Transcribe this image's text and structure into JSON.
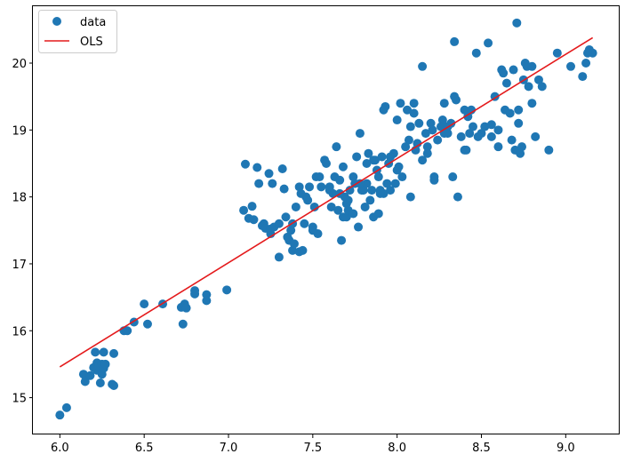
{
  "chart_data": {
    "type": "scatter",
    "title": "",
    "xlabel": "",
    "ylabel": "",
    "xlim": [
      5.84,
      9.32
    ],
    "ylim": [
      14.45,
      20.85
    ],
    "xticks": [
      6.0,
      6.5,
      7.0,
      7.5,
      8.0,
      8.5,
      9.0
    ],
    "xtick_labels": [
      "6.0",
      "6.5",
      "7.0",
      "7.5",
      "8.0",
      "8.5",
      "9.0"
    ],
    "yticks": [
      15,
      16,
      17,
      18,
      19,
      20
    ],
    "ytick_labels": [
      "15",
      "16",
      "17",
      "18",
      "19",
      "20"
    ],
    "grid": false,
    "legend_position": "top-left",
    "colors": {
      "data": "#1f77b4",
      "ols": "#e41a1c"
    },
    "series": [
      {
        "name": "data",
        "kind": "scatter",
        "x": [
          6.0,
          6.04,
          6.14,
          6.15,
          6.18,
          6.2,
          6.21,
          6.22,
          6.22,
          6.23,
          6.24,
          6.25,
          6.25,
          6.26,
          6.26,
          6.27,
          6.31,
          6.32,
          6.32,
          6.38,
          6.4,
          6.44,
          6.5,
          6.52,
          6.61,
          6.72,
          6.73,
          6.74,
          6.75,
          6.8,
          6.8,
          6.87,
          6.87,
          6.99,
          7.09,
          7.1,
          7.12,
          7.14,
          7.15,
          7.17,
          7.18,
          7.2,
          7.21,
          7.22,
          7.24,
          7.25,
          7.26,
          7.27,
          7.3,
          7.32,
          7.33,
          7.34,
          7.36,
          7.37,
          7.38,
          7.38,
          7.39,
          7.4,
          7.42,
          7.44,
          7.45,
          7.46,
          7.47,
          7.48,
          7.5,
          7.51,
          7.52,
          7.53,
          7.55,
          7.57,
          7.58,
          7.6,
          7.61,
          7.62,
          7.63,
          7.65,
          7.66,
          7.67,
          7.68,
          7.68,
          7.69,
          7.7,
          7.71,
          7.72,
          7.74,
          7.75,
          7.76,
          7.77,
          7.78,
          7.79,
          7.8,
          7.81,
          7.82,
          7.83,
          7.84,
          7.85,
          7.86,
          7.87,
          7.88,
          7.89,
          7.9,
          7.91,
          7.92,
          7.93,
          7.94,
          7.95,
          7.96,
          7.98,
          7.99,
          8.0,
          8.01,
          8.02,
          8.03,
          8.05,
          8.06,
          8.07,
          8.08,
          8.1,
          8.11,
          8.12,
          8.13,
          8.15,
          8.17,
          8.18,
          8.2,
          8.21,
          8.22,
          8.24,
          8.26,
          8.27,
          8.28,
          8.3,
          8.32,
          8.33,
          8.34,
          8.35,
          8.36,
          8.38,
          8.4,
          8.41,
          8.42,
          8.43,
          8.45,
          8.47,
          8.5,
          8.52,
          8.54,
          8.56,
          8.58,
          8.6,
          8.62,
          8.64,
          8.65,
          8.67,
          8.68,
          8.69,
          8.7,
          8.71,
          8.72,
          8.74,
          8.75,
          8.76,
          8.77,
          8.78,
          8.8,
          8.82,
          8.84,
          8.86,
          8.95,
          9.03,
          9.1,
          9.12,
          9.14,
          9.16,
          9.13,
          8.9,
          8.6,
          8.4,
          8.3,
          8.1,
          7.9,
          7.7,
          7.5,
          7.3,
          7.86,
          7.92,
          8.18,
          8.34,
          8.44,
          8.56,
          8.63,
          8.73,
          8.8,
          7.54,
          7.43,
          7.64,
          7.96,
          8.22,
          8.28,
          7.82,
          7.66,
          7.78,
          8.0,
          8.15,
          7.71,
          7.6,
          7.35,
          7.25,
          7.42,
          8.48,
          8.72,
          8.08,
          7.89,
          7.74
        ],
        "y": [
          14.74,
          14.85,
          15.35,
          15.24,
          15.33,
          15.45,
          15.68,
          15.52,
          15.41,
          15.47,
          15.22,
          15.35,
          15.5,
          15.68,
          15.44,
          15.5,
          15.2,
          15.18,
          15.66,
          16.0,
          16.0,
          16.13,
          16.4,
          16.1,
          16.4,
          16.35,
          16.1,
          16.4,
          16.34,
          16.55,
          16.6,
          16.45,
          16.54,
          16.61,
          17.8,
          18.49,
          17.68,
          17.86,
          17.66,
          18.44,
          18.2,
          17.57,
          17.6,
          17.53,
          18.35,
          17.45,
          18.2,
          17.55,
          17.6,
          18.42,
          18.12,
          17.7,
          17.35,
          17.5,
          17.6,
          17.2,
          17.3,
          17.85,
          18.15,
          17.2,
          17.6,
          18.0,
          17.95,
          18.15,
          17.55,
          17.85,
          18.3,
          17.45,
          18.15,
          18.55,
          18.5,
          18.15,
          17.85,
          18.05,
          18.3,
          17.8,
          18.25,
          17.35,
          18.45,
          17.7,
          18.0,
          17.7,
          17.8,
          18.1,
          17.75,
          18.2,
          18.6,
          17.55,
          18.95,
          18.1,
          18.1,
          17.85,
          18.2,
          18.65,
          17.95,
          18.1,
          17.7,
          18.55,
          18.4,
          18.3,
          18.1,
          18.6,
          18.05,
          19.35,
          18.2,
          18.5,
          18.1,
          18.65,
          18.2,
          19.15,
          18.45,
          19.4,
          18.3,
          18.75,
          19.3,
          18.85,
          19.05,
          19.25,
          18.7,
          18.8,
          19.1,
          19.95,
          18.95,
          18.75,
          19.1,
          19.0,
          18.3,
          18.85,
          19.05,
          19.15,
          19.4,
          18.95,
          19.1,
          18.3,
          20.32,
          19.45,
          18.0,
          18.9,
          19.3,
          18.7,
          19.2,
          18.95,
          19.05,
          20.15,
          18.95,
          19.05,
          20.3,
          18.9,
          19.5,
          18.75,
          19.9,
          19.3,
          19.7,
          19.25,
          18.85,
          19.9,
          18.7,
          20.6,
          19.3,
          18.75,
          19.75,
          20.0,
          19.95,
          19.65,
          19.4,
          18.9,
          19.75,
          19.65,
          20.15,
          19.95,
          19.8,
          20.0,
          20.2,
          20.15,
          20.15,
          18.7,
          19.0,
          18.7,
          19.05,
          19.4,
          18.05,
          17.9,
          17.5,
          17.1,
          18.55,
          19.3,
          18.65,
          19.5,
          19.3,
          19.08,
          19.85,
          18.65,
          19.95,
          18.3,
          18.05,
          18.75,
          18.6,
          18.25,
          18.95,
          18.5,
          18.05,
          18.2,
          18.4,
          18.55,
          17.95,
          18.1,
          17.4,
          17.52,
          17.18,
          18.9,
          19.1,
          18.0,
          17.75,
          18.3
        ]
      },
      {
        "name": "OLS",
        "kind": "line",
        "x": [
          6.0,
          9.16
        ],
        "y": [
          15.46,
          20.38
        ]
      }
    ]
  }
}
